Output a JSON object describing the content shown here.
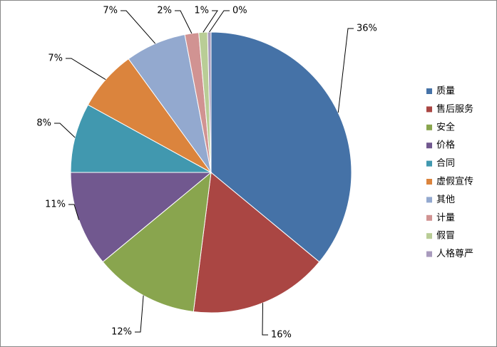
{
  "chart_data": {
    "type": "pie",
    "categories": [
      "质量",
      "售后服务",
      "安全",
      "价格",
      "合同",
      "虚假宣传",
      "其他",
      "计量",
      "假冒",
      "人格尊严"
    ],
    "values": [
      36,
      16,
      12,
      11,
      8,
      7,
      7,
      1.6,
      1.0,
      0.4
    ],
    "value_labels": [
      "36%",
      "16%",
      "12%",
      "11%",
      "8%",
      "7%",
      "7%",
      "2%",
      "1%",
      "0%"
    ],
    "colors": [
      "#4572a7",
      "#aa4643",
      "#89a54e",
      "#71588f",
      "#4198af",
      "#db843d",
      "#93a9cf",
      "#d19392",
      "#b9cd96",
      "#a99bbd"
    ],
    "legend": "right"
  }
}
